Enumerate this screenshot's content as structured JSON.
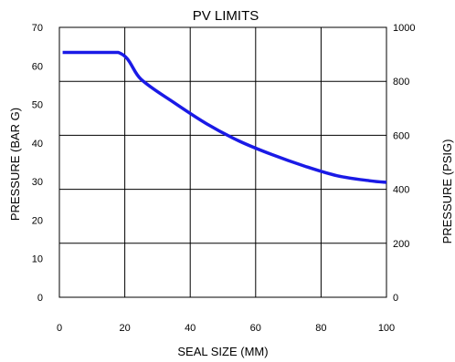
{
  "chart_data": {
    "type": "line",
    "title": "PV LIMITS",
    "xlabel": "SEAL SIZE (MM)",
    "ylabel": "PRESSURE (BAR G)",
    "y2label": "PRESSURE (PSIG)",
    "xlim": [
      0,
      100
    ],
    "ylim": [
      0,
      70
    ],
    "y2lim": [
      0,
      1000
    ],
    "xticks": [
      "0",
      "20",
      "40",
      "60",
      "80",
      "100"
    ],
    "xtick_values": [
      0,
      20,
      40,
      60,
      80,
      100
    ],
    "yticks": [
      "0",
      "10",
      "20",
      "30",
      "40",
      "50",
      "60",
      "70"
    ],
    "ytick_values": [
      0,
      10,
      20,
      30,
      40,
      50,
      60,
      70
    ],
    "y2ticks": [
      "0",
      "200",
      "400",
      "600",
      "800",
      "1000"
    ],
    "y2tick_values": [
      0,
      200,
      400,
      600,
      800,
      1000
    ],
    "grid": true,
    "series_color": "#1a1ae6",
    "series": [
      {
        "x": [
          1,
          18,
          25,
          35,
          45,
          55,
          65,
          75,
          85,
          95,
          100
        ],
        "y": [
          63.5,
          63.5,
          56.5,
          50.5,
          45.0,
          40.5,
          37.0,
          34.0,
          31.5,
          30.2,
          29.8
        ]
      }
    ]
  }
}
